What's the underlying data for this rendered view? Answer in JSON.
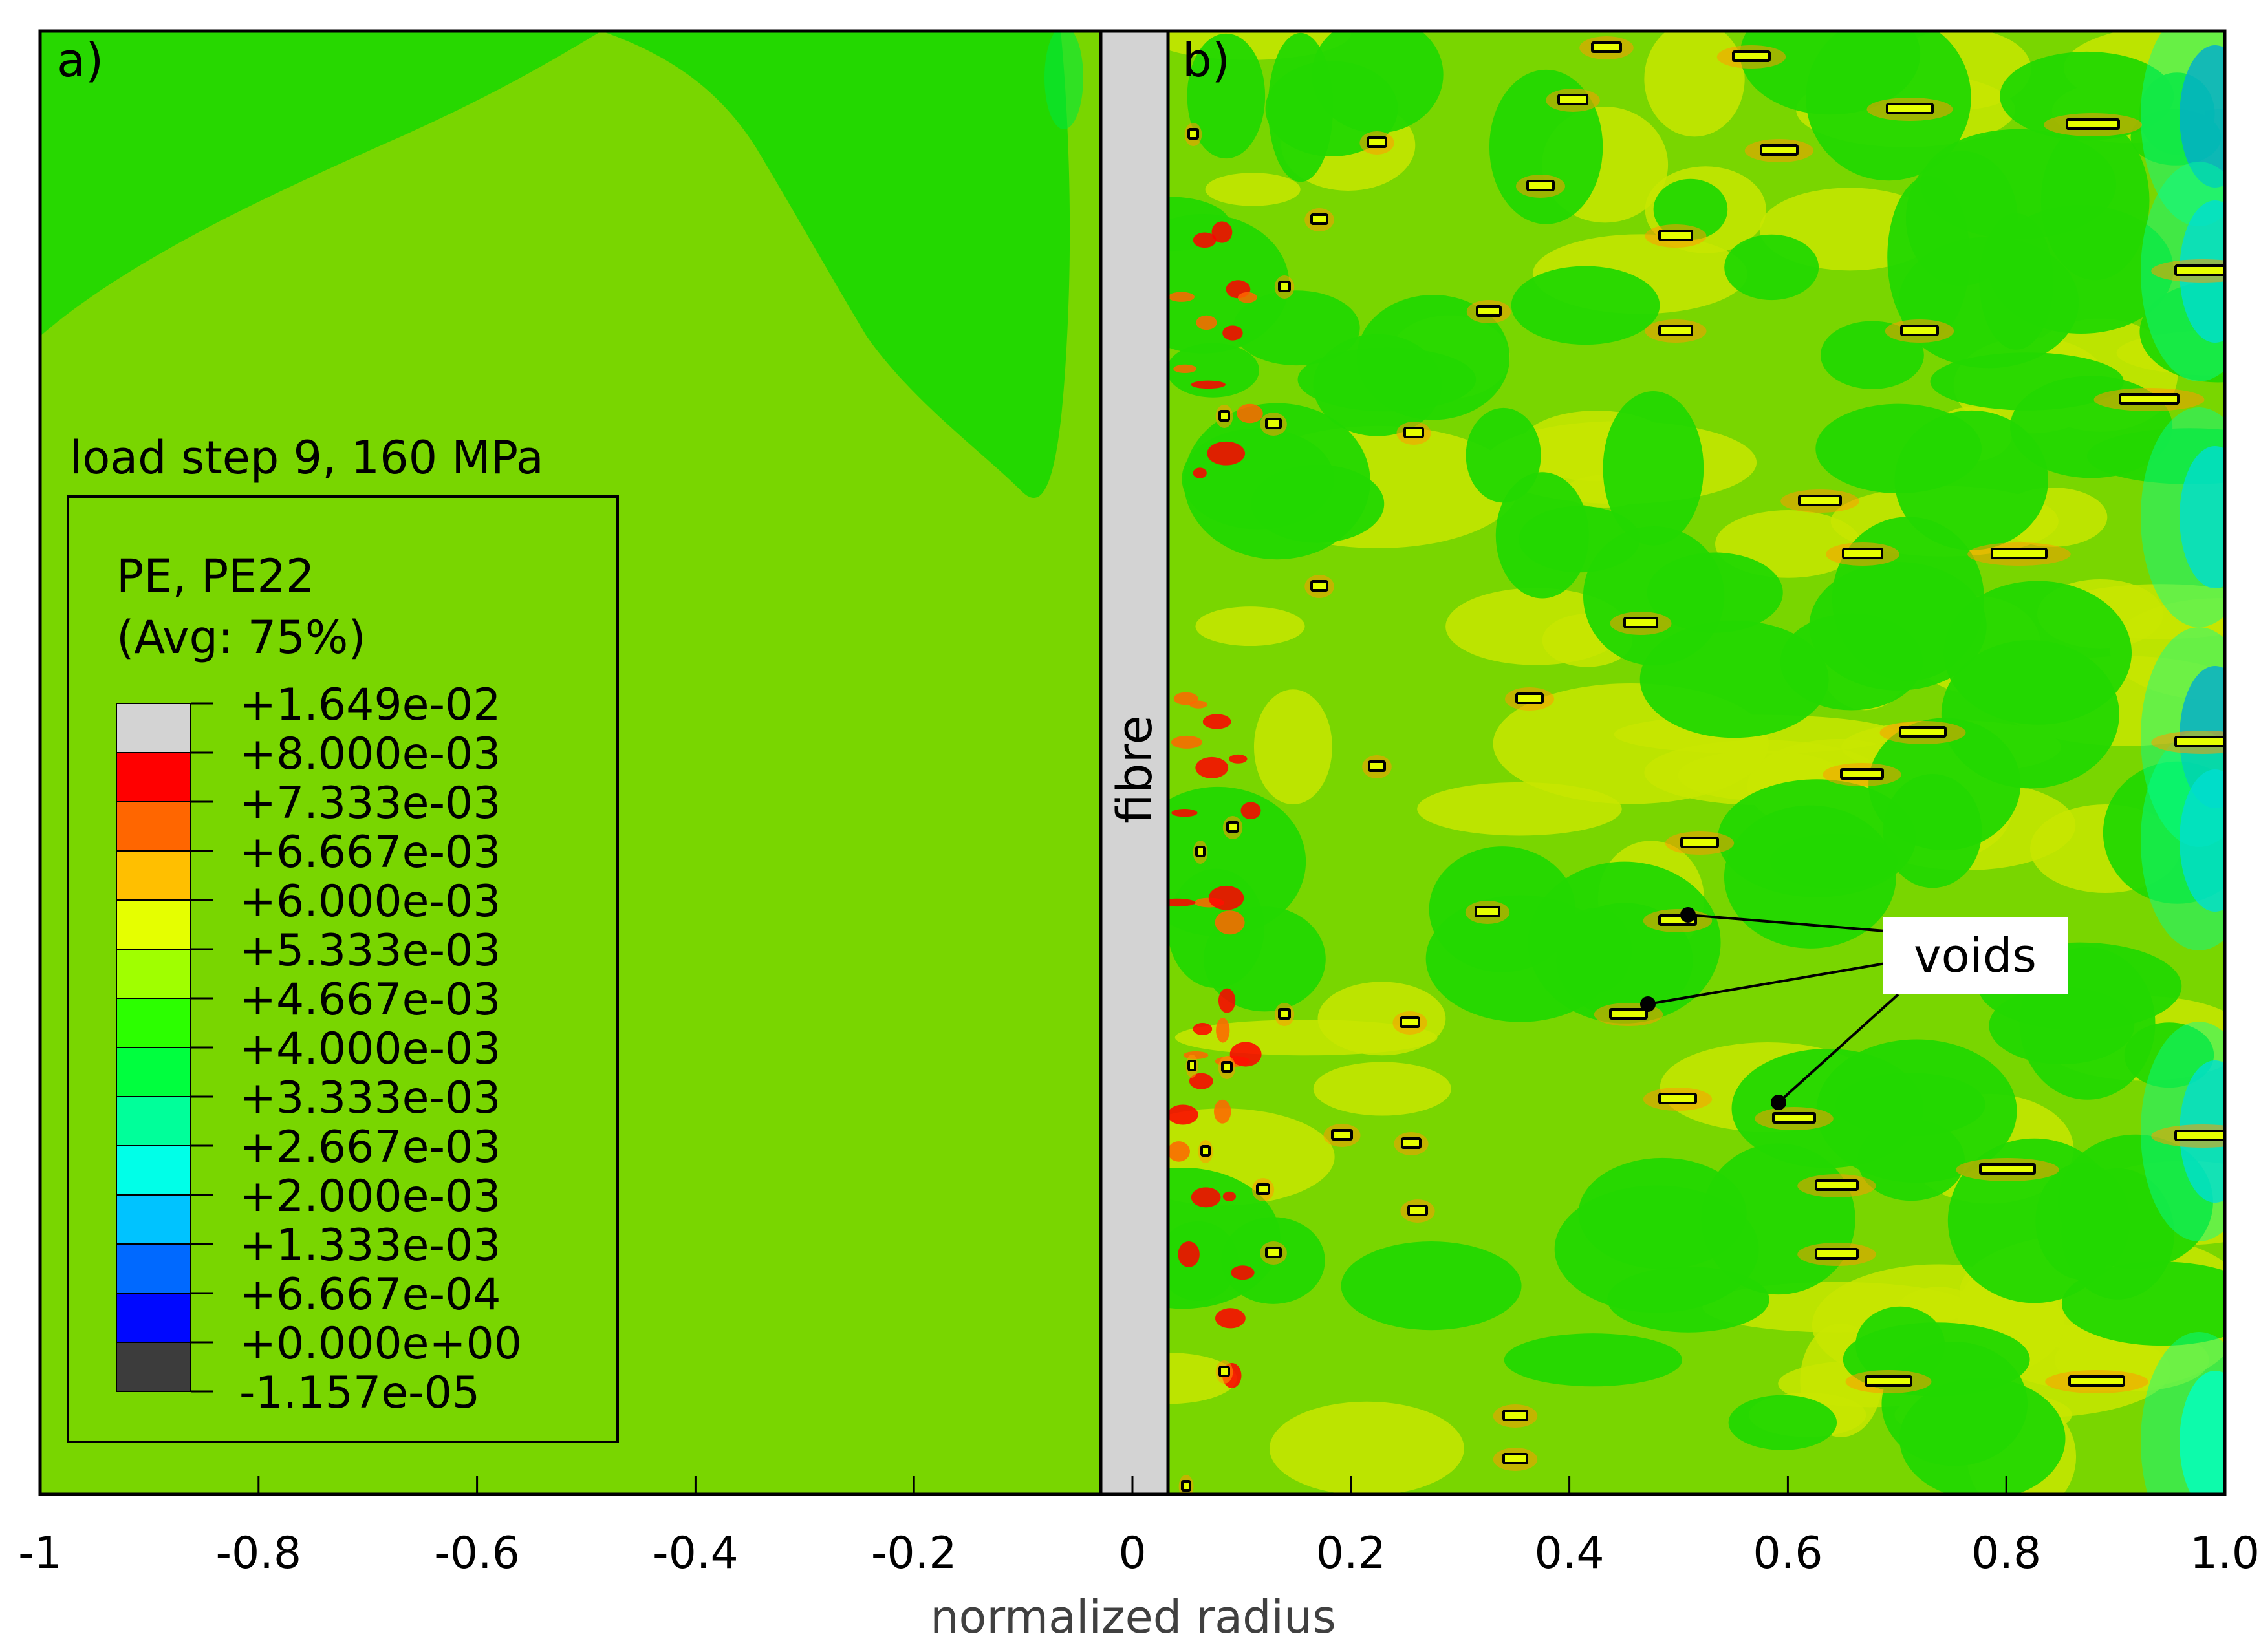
{
  "panels": {
    "a_label": "a)",
    "b_label": "b)"
  },
  "fibre_label": "fibre",
  "legend": {
    "title": "load step 9, 160 MPa",
    "variable": "PE, PE22",
    "averaging": "(Avg: 75%)",
    "levels": [
      "+1.649e-02",
      "+8.000e-03",
      "+7.333e-03",
      "+6.667e-03",
      "+6.000e-03",
      "+5.333e-03",
      "+4.667e-03",
      "+4.000e-03",
      "+3.333e-03",
      "+2.667e-03",
      "+2.000e-03",
      "+1.333e-03",
      "+6.667e-04",
      "+0.000e+00",
      "-1.157e-05"
    ],
    "colors": [
      "#d3d3d3",
      "#ff0000",
      "#ff6600",
      "#ffbf00",
      "#e5ff00",
      "#a0ff00",
      "#2cff00",
      "#00ff3e",
      "#00ff9a",
      "#00ffe8",
      "#00c3ff",
      "#0069ff",
      "#0008ff",
      "#3c3c3c"
    ]
  },
  "annotation": {
    "label": "voids"
  },
  "axis": {
    "xlabel": "normalized radius",
    "xlim": [
      -1,
      1
    ],
    "ticks": [
      "-1",
      "-0.8",
      "-0.6",
      "-0.4",
      "-0.2",
      "0",
      "0.2",
      "0.4",
      "0.6",
      "0.8",
      "1.0"
    ]
  },
  "colors": {
    "matrix_base": "#79d600",
    "matrix_green": "#23d800",
    "fibre_fill": "#d3d3d3"
  }
}
